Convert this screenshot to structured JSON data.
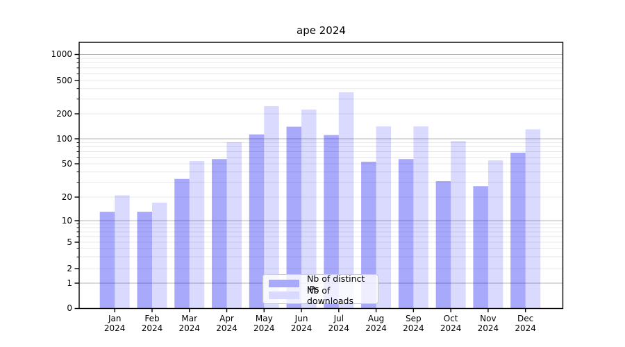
{
  "title": "ape 2024",
  "chart_data": {
    "type": "bar",
    "title": "ape 2024",
    "categories": [
      "Jan 2024",
      "Feb 2024",
      "Mar 2024",
      "Apr 2024",
      "May 2024",
      "Jun 2024",
      "Jul 2024",
      "Aug 2024",
      "Sep 2024",
      "Oct 2024",
      "Nov 2024",
      "Dec 2024"
    ],
    "months": [
      "Jan",
      "Feb",
      "Mar",
      "Apr",
      "May",
      "Jun",
      "Jul",
      "Aug",
      "Sep",
      "Oct",
      "Nov",
      "Dec"
    ],
    "year_label": "2024",
    "series": [
      {
        "name": "Nb of distinct IPs",
        "color": "#0a0af5",
        "alpha": 0.35,
        "composite_hex": "#a9a9fb",
        "values": [
          13,
          13,
          33,
          57,
          113,
          140,
          111,
          53,
          57,
          31,
          27,
          68
        ]
      },
      {
        "name": "Nb of downloads",
        "color": "#0a0af5",
        "alpha": 0.15,
        "composite_hex": "#dadafd",
        "values": [
          21,
          17,
          54,
          91,
          247,
          225,
          362,
          141,
          141,
          94,
          55,
          130
        ]
      }
    ],
    "xlabel": "",
    "ylabel": "",
    "yscale": "log-like with 0 baseline",
    "ylim": [
      0,
      1400
    ],
    "yticks": [
      "1000",
      "500",
      "200",
      "100",
      "50",
      "20",
      "10",
      "5",
      "2",
      "1",
      "0"
    ],
    "grid": "horizontal, major (1,10,100,1000) darker + minor lighter",
    "legend_position": "lower center",
    "colors": {
      "major_grid": "#b4b4b4",
      "minor_grid": "#e8e8e8",
      "axis": "#000000",
      "legend_border": "#cccccc"
    }
  }
}
